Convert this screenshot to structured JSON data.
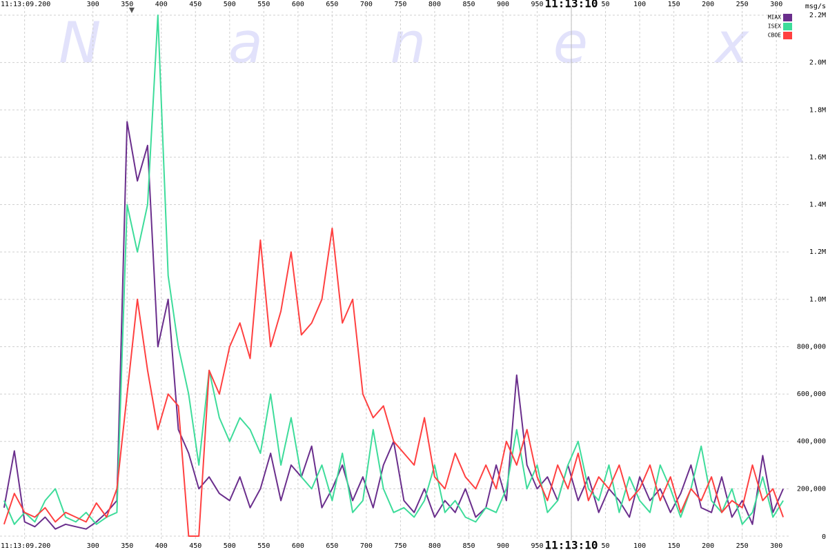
{
  "chart_data": {
    "type": "line",
    "watermark": "Nanex",
    "y_axis_label": "msg/s",
    "x": [
      170,
      185,
      200,
      215,
      230,
      245,
      260,
      275,
      290,
      305,
      320,
      335,
      350,
      365,
      380,
      395,
      410,
      425,
      440,
      455,
      470,
      485,
      500,
      515,
      530,
      545,
      560,
      575,
      590,
      605,
      620,
      635,
      650,
      665,
      680,
      695,
      710,
      725,
      740,
      755,
      770,
      785,
      800,
      815,
      830,
      845,
      860,
      875,
      890,
      905,
      920,
      935,
      950,
      965,
      980,
      995,
      1010,
      1025,
      1040,
      1055,
      1070,
      1085,
      1100,
      1115,
      1130,
      1145,
      1160,
      1175,
      1190,
      1205,
      1220,
      1235,
      1250,
      1265,
      1280,
      1295,
      1310
    ],
    "series": [
      {
        "name": "MIAX",
        "color": "#6a2e8c",
        "values": [
          120000,
          360000,
          60000,
          40000,
          80000,
          30000,
          50000,
          40000,
          30000,
          60000,
          100000,
          150000,
          1750000,
          1500000,
          1650000,
          800000,
          1000000,
          450000,
          350000,
          200000,
          250000,
          180000,
          150000,
          250000,
          120000,
          200000,
          350000,
          150000,
          300000,
          250000,
          380000,
          120000,
          200000,
          300000,
          150000,
          250000,
          120000,
          300000,
          400000,
          150000,
          100000,
          200000,
          80000,
          150000,
          100000,
          200000,
          80000,
          120000,
          300000,
          150000,
          680000,
          300000,
          200000,
          250000,
          150000,
          300000,
          150000,
          250000,
          100000,
          200000,
          150000,
          80000,
          250000,
          150000,
          200000,
          100000,
          180000,
          300000,
          120000,
          100000,
          250000,
          80000,
          150000,
          50000,
          340000,
          100000,
          200000
        ]
      },
      {
        "name": "ISEX",
        "color": "#3ddc9a",
        "values": [
          150000,
          50000,
          100000,
          60000,
          150000,
          200000,
          80000,
          60000,
          100000,
          50000,
          80000,
          100000,
          1400000,
          1200000,
          1400000,
          2200000,
          1100000,
          800000,
          600000,
          300000,
          700000,
          500000,
          400000,
          500000,
          450000,
          350000,
          600000,
          300000,
          500000,
          250000,
          200000,
          300000,
          150000,
          350000,
          100000,
          150000,
          450000,
          200000,
          100000,
          120000,
          80000,
          150000,
          300000,
          100000,
          150000,
          80000,
          60000,
          120000,
          100000,
          200000,
          450000,
          200000,
          300000,
          100000,
          150000,
          300000,
          400000,
          200000,
          150000,
          300000,
          100000,
          250000,
          150000,
          100000,
          300000,
          200000,
          80000,
          200000,
          380000,
          150000,
          100000,
          200000,
          50000,
          100000,
          250000,
          80000,
          150000
        ]
      },
      {
        "name": "CBOE",
        "color": "#ff4040",
        "values": [
          50000,
          180000,
          100000,
          80000,
          120000,
          60000,
          100000,
          80000,
          60000,
          140000,
          80000,
          200000,
          600000,
          1000000,
          700000,
          450000,
          600000,
          550000,
          0,
          0,
          700000,
          600000,
          800000,
          900000,
          750000,
          1250000,
          800000,
          950000,
          1200000,
          850000,
          900000,
          1000000,
          1300000,
          900000,
          1000000,
          600000,
          500000,
          550000,
          400000,
          350000,
          300000,
          500000,
          250000,
          200000,
          350000,
          250000,
          200000,
          300000,
          200000,
          400000,
          300000,
          450000,
          250000,
          150000,
          300000,
          200000,
          350000,
          150000,
          250000,
          200000,
          300000,
          150000,
          200000,
          300000,
          150000,
          250000,
          100000,
          200000,
          150000,
          250000,
          100000,
          150000,
          120000,
          300000,
          150000,
          200000,
          80000
        ]
      }
    ],
    "xlim": [
      164,
      1320
    ],
    "xticks": [
      {
        "value": 200,
        "label": "11:13:09.200"
      },
      300,
      350,
      400,
      450,
      500,
      550,
      600,
      650,
      700,
      750,
      800,
      850,
      900,
      950,
      {
        "value": 1000,
        "label": "11:13:10"
      },
      {
        "value": 1050,
        "label": "50"
      },
      {
        "value": 1100,
        "label": "100"
      },
      {
        "value": 1150,
        "label": "150"
      },
      {
        "value": 1200,
        "label": "200"
      },
      {
        "value": 1250,
        "label": "250"
      },
      {
        "value": 1300,
        "label": "300"
      }
    ],
    "ylim": [
      0,
      2200000
    ],
    "yticks": [
      0,
      {
        "value": 200000,
        "label": "200,000"
      },
      {
        "value": 400000,
        "label": "400,000"
      },
      {
        "value": 600000,
        "label": "600,000"
      },
      {
        "value": 800000,
        "label": "800,000"
      },
      {
        "value": 1000000,
        "label": "1.0M"
      },
      {
        "value": 1200000,
        "label": "1.2M"
      },
      {
        "value": 1400000,
        "label": "1.4M"
      },
      {
        "value": 1600000,
        "label": "1.6M"
      },
      {
        "value": 1800000,
        "label": "1.8M"
      },
      {
        "value": 2000000,
        "label": "2.0M"
      },
      {
        "value": 2200000,
        "label": "2.2M"
      }
    ],
    "grid": true,
    "legend": "top-right"
  }
}
